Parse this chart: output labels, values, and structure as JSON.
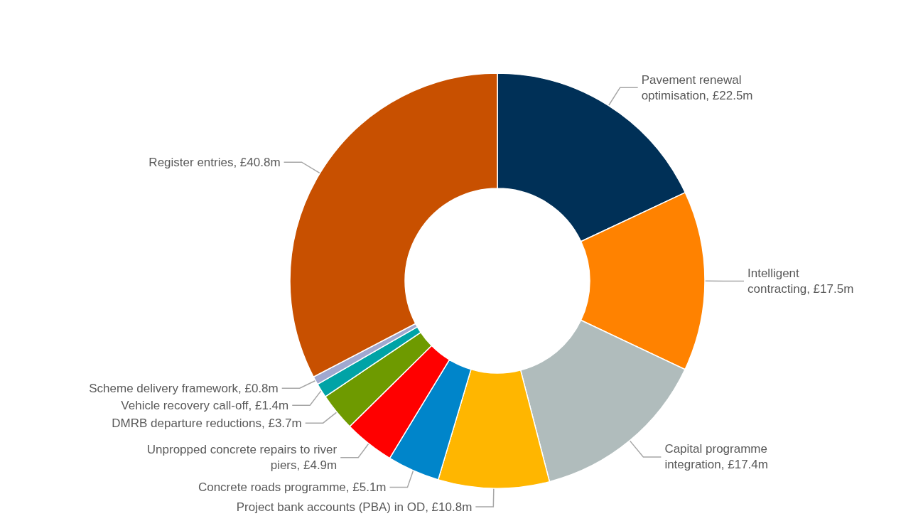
{
  "chart_data": {
    "type": "donut",
    "categories": [
      "Pavement renewal optimisation",
      "Intelligent contracting",
      "Capital programme integration",
      "Project bank accounts (PBA) in OD",
      "Concrete roads programme",
      "Unpropped concrete repairs to river piers",
      "DMRB departure reductions",
      "Vehicle recovery call-off",
      "Scheme delivery framework",
      "Register entries"
    ],
    "values": [
      22.5,
      17.5,
      17.4,
      10.8,
      5.1,
      4.9,
      3.7,
      1.4,
      0.8,
      40.8
    ],
    "value_labels": [
      "£22.5m",
      "£17.5m",
      "£17.4m",
      "£10.8m",
      "£5.1m",
      "£4.9m",
      "£3.7m",
      "£1.4m",
      "£0.8m",
      "£40.8m"
    ],
    "colors": [
      "#003057",
      "#ff8200",
      "#b0bcbc",
      "#ffb600",
      "#0085ca",
      "#ff0000",
      "#6e9a00",
      "#00a3a6",
      "#a0a8d0",
      "#c85000"
    ],
    "legend": false
  }
}
